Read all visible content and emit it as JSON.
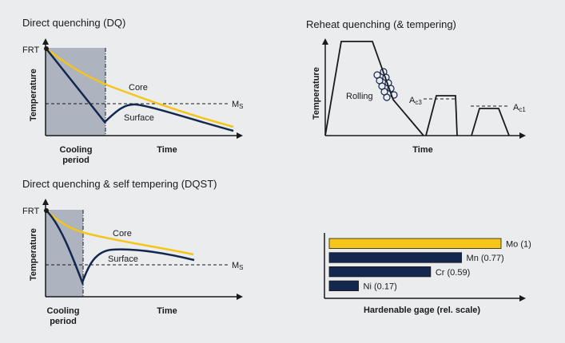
{
  "colors": {
    "background": "#ebeced",
    "core": "#f5c518",
    "surface": "#14274e",
    "shade": "#adb3bf",
    "axis": "#1a1a1a"
  },
  "dq": {
    "title": "Direct quenching (DQ)",
    "frt": "FRT",
    "ylabel": "Temperature",
    "xlabel": "Time",
    "cooling_line1": "Cooling",
    "cooling_line2": "period",
    "core": "Core",
    "surface": "Surface",
    "ms": "M",
    "ms_sub": "S"
  },
  "rq": {
    "title": "Reheat quenching (& tempering)",
    "ylabel": "Temperature",
    "xlabel": "Time",
    "rolling": "Rolling",
    "ac3": "A",
    "ac3_sub": "c3",
    "ac1": "A",
    "ac1_sub": "c1"
  },
  "dqst": {
    "title": "Direct quenching & self tempering (DQST)",
    "frt": "FRT",
    "ylabel": "Temperature",
    "xlabel": "Time",
    "cooling_line1": "Cooling",
    "cooling_line2": "period",
    "core": "Core",
    "surface": "Surface",
    "ms": "M",
    "ms_sub": "S"
  },
  "chart_data": {
    "type": "bar",
    "orientation": "horizontal",
    "xlabel": "Hardenable gage (rel. scale)",
    "categories": [
      "Mo",
      "Mn",
      "Cr",
      "Ni"
    ],
    "values": [
      1,
      0.77,
      0.59,
      0.17
    ],
    "labels": [
      "Mo (1)",
      "Mn (0.77)",
      "Cr (0.59)",
      "Ni (0.17)"
    ],
    "bar_colors": [
      "#f5c518",
      "#14274e",
      "#14274e",
      "#14274e"
    ],
    "xlim": [
      0,
      1
    ]
  }
}
